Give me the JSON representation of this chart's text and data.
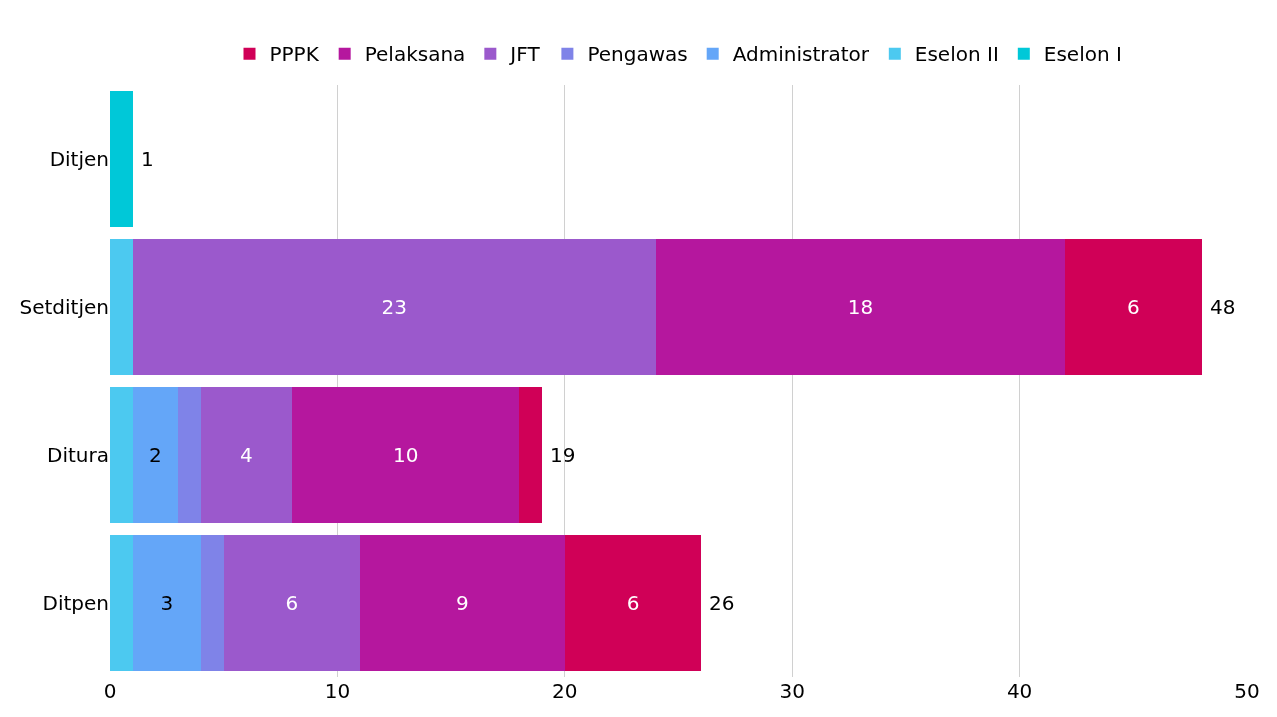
{
  "chart_data": {
    "type": "bar",
    "orientation": "horizontal",
    "stacked": true,
    "categories": [
      "Ditjen",
      "Setditjen",
      "Ditura",
      "Ditpen"
    ],
    "series": [
      {
        "name": "Eselon I",
        "color": "#00c8d8",
        "values": [
          1,
          0,
          0,
          0
        ],
        "value_labels": [
          null,
          null,
          null,
          null
        ]
      },
      {
        "name": "Eselon II",
        "color": "#4cc9f0",
        "values": [
          0,
          1,
          1,
          1
        ],
        "value_labels": [
          null,
          null,
          null,
          null
        ]
      },
      {
        "name": "Administrator",
        "color": "#64a6f8",
        "values": [
          0,
          0,
          2,
          3
        ],
        "value_labels": [
          null,
          null,
          "2",
          "3"
        ]
      },
      {
        "name": "Pengawas",
        "color": "#7f83e8",
        "values": [
          0,
          0,
          1,
          1
        ],
        "value_labels": [
          null,
          null,
          null,
          null
        ]
      },
      {
        "name": "JFT",
        "color": "#9b59cc",
        "values": [
          0,
          23,
          4,
          6
        ],
        "value_labels": [
          null,
          "23",
          "4",
          "6"
        ]
      },
      {
        "name": "Pelaksana",
        "color": "#b5179e",
        "values": [
          0,
          18,
          10,
          9
        ],
        "value_labels": [
          null,
          "18",
          "10",
          "9"
        ]
      },
      {
        "name": "PPPK",
        "color": "#d00057",
        "values": [
          0,
          6,
          1,
          6
        ],
        "value_labels": [
          null,
          "6",
          null,
          "6"
        ]
      }
    ],
    "totals": [
      "1",
      "48",
      "19",
      "26"
    ],
    "xlim": [
      0,
      50
    ],
    "xticks": [
      0,
      10,
      20,
      30,
      40,
      50
    ],
    "grid": "x",
    "legend": "top"
  }
}
